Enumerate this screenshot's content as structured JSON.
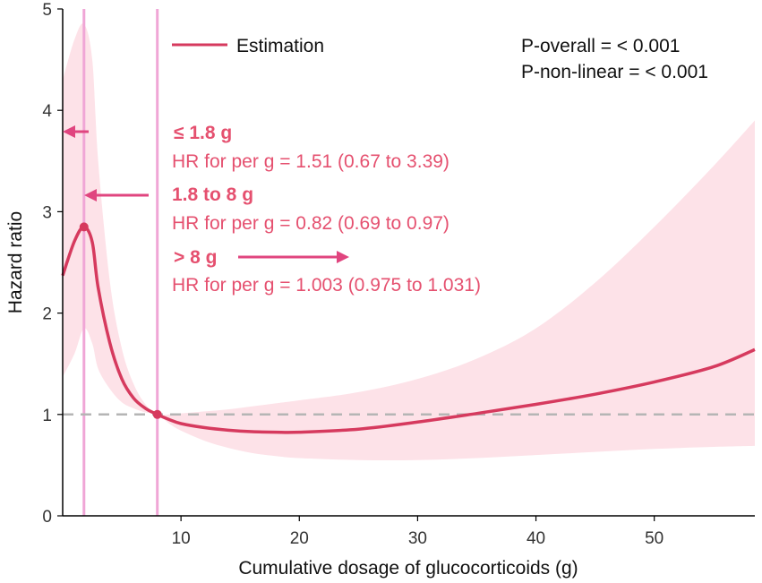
{
  "chart_data": {
    "type": "line",
    "title": "",
    "xlabel": "Cumulative dosage of glucocorticoids (g)",
    "ylabel": "Hazard ratio",
    "xlim": [
      0,
      58.5
    ],
    "ylim": [
      0,
      5
    ],
    "x_ticks": [
      10,
      20,
      30,
      40,
      50
    ],
    "y_ticks": [
      0,
      1,
      2,
      3,
      4,
      5
    ],
    "reference_line": {
      "y": 1,
      "style": "dashed"
    },
    "knots": [
      1.8,
      8
    ],
    "colors": {
      "line": "#d63a5e",
      "band": "#fde2e8",
      "knot_line": "#f0a6d6",
      "annotation": "#e5506f",
      "arrow": "#e0457f",
      "ref_line": "#b5b5b5"
    },
    "series": [
      {
        "name": "Estimation",
        "x": [
          0,
          1,
          1.8,
          2.5,
          3,
          4,
          5,
          6,
          7,
          8,
          9,
          10,
          12,
          14,
          16,
          18,
          20,
          25,
          30,
          35,
          40,
          45,
          50,
          55,
          58.5
        ],
        "y": [
          2.37,
          2.71,
          2.85,
          2.7,
          2.25,
          1.7,
          1.35,
          1.16,
          1.06,
          1.0,
          0.95,
          0.91,
          0.87,
          0.845,
          0.83,
          0.825,
          0.825,
          0.855,
          0.925,
          1.01,
          1.1,
          1.2,
          1.32,
          1.47,
          1.64
        ],
        "lower": [
          1.37,
          1.6,
          1.85,
          1.7,
          1.45,
          1.25,
          1.12,
          1.06,
          1.02,
          1.0,
          0.91,
          0.84,
          0.74,
          0.67,
          0.62,
          0.59,
          0.57,
          0.55,
          0.55,
          0.57,
          0.6,
          0.63,
          0.66,
          0.68,
          0.69
        ],
        "upper": [
          4.3,
          4.7,
          4.85,
          4.5,
          3.5,
          2.3,
          1.65,
          1.3,
          1.1,
          1.0,
          1.0,
          1.01,
          1.03,
          1.05,
          1.08,
          1.11,
          1.14,
          1.22,
          1.35,
          1.55,
          1.85,
          2.3,
          2.85,
          3.45,
          3.9
        ]
      }
    ],
    "points": [
      {
        "x": 1.8,
        "y": 2.85
      },
      {
        "x": 8,
        "y": 1.0
      }
    ],
    "legend": {
      "label": "Estimation",
      "position": "top-left"
    },
    "stats": {
      "p_overall": "P-overall = < 0.001",
      "p_nonlinear": "P-non-linear = < 0.001"
    },
    "segments": [
      {
        "range": "≤ 1.8 g",
        "hr": "HR for per g = 1.51 (0.67 to 3.39)",
        "arrow": "left"
      },
      {
        "range": "1.8 to 8 g",
        "hr": "HR for per g = 0.82 (0.69 to 0.97)",
        "arrow": "left"
      },
      {
        "range": "> 8 g",
        "hr": "HR for per g = 1.003 (0.975 to 1.031)",
        "arrow": "right"
      }
    ]
  }
}
